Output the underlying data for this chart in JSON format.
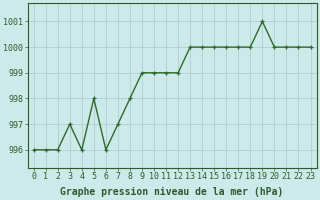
{
  "x": [
    0,
    1,
    2,
    3,
    4,
    5,
    6,
    7,
    8,
    9,
    10,
    11,
    12,
    13,
    14,
    15,
    16,
    17,
    18,
    19,
    20,
    21,
    22,
    23
  ],
  "y": [
    996,
    996,
    996,
    997,
    996,
    998,
    996,
    997,
    998,
    999,
    999,
    999,
    999,
    1000,
    1000,
    1000,
    1000,
    1000,
    1000,
    1001,
    1000,
    1000,
    1000,
    1000
  ],
  "line_color": "#2d6a2d",
  "marker": "+",
  "marker_size": 3.5,
  "linewidth": 1.0,
  "xlabel": "Graphe pression niveau de la mer (hPa)",
  "xlabel_fontsize": 7.0,
  "xlabel_bold": true,
  "ylim": [
    995.3,
    1001.7
  ],
  "xlim": [
    -0.5,
    23.5
  ],
  "yticks": [
    996,
    997,
    998,
    999,
    1000,
    1001
  ],
  "ytick_labels": [
    "996",
    "997",
    "998",
    "999",
    "1000",
    "1001"
  ],
  "xticks": [
    0,
    1,
    2,
    3,
    4,
    5,
    6,
    7,
    8,
    9,
    10,
    11,
    12,
    13,
    14,
    15,
    16,
    17,
    18,
    19,
    20,
    21,
    22,
    23
  ],
  "background_color": "#cceaea",
  "grid_color": "#aac8c8",
  "tick_fontsize": 6.0,
  "label_color": "#2d5a2d"
}
